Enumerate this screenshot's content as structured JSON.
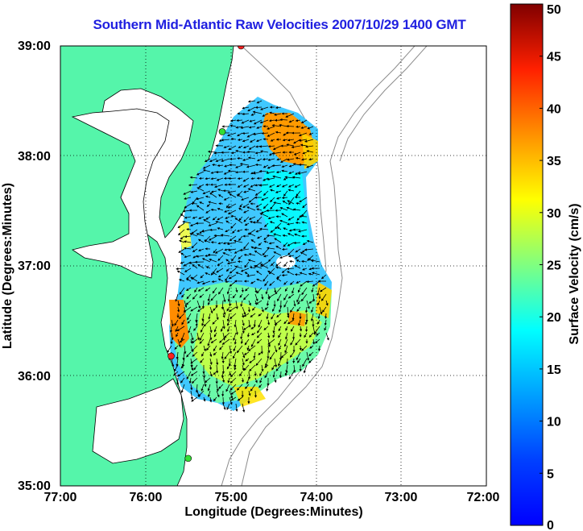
{
  "title": "Southern Mid-Atlantic Raw Velocities 2007/10/29 1400 GMT",
  "axes": {
    "xlabel": "Longitude (Degrees:Minutes)",
    "ylabel": "Latitude (Degrees:Minutes)",
    "x_ticks": [
      "77:00",
      "76:00",
      "75:00",
      "74:00",
      "73:00",
      "72:00"
    ],
    "y_ticks": [
      "39:00",
      "38:00",
      "37:00",
      "36:00",
      "35:00"
    ]
  },
  "colorbar": {
    "label": "Surface Velocity (cm/s)",
    "ticks": [
      "0",
      "5",
      "10",
      "15",
      "20",
      "25",
      "30",
      "35",
      "40",
      "45",
      "50"
    ],
    "range": [
      0,
      50
    ],
    "colormap": "jet"
  },
  "colors": {
    "title": "#1f1fe0",
    "land": "#55f5aa",
    "water": "#ffffff",
    "coastline": "#000000",
    "bathymetry": "#8c8c8c",
    "grid": "#000000"
  },
  "sites": [
    {
      "color": "#ff2020",
      "lon": -74.88,
      "lat": 39.0
    },
    {
      "color": "#33dd33",
      "lon": -75.1,
      "lat": 38.22
    },
    {
      "color": "#ff2020",
      "lon": -75.7,
      "lat": 36.18
    },
    {
      "color": "#33dd33",
      "lon": -75.5,
      "lat": 35.25
    }
  ],
  "map_extent": {
    "lon": [
      -77,
      -72
    ],
    "lat": [
      35,
      39
    ]
  }
}
